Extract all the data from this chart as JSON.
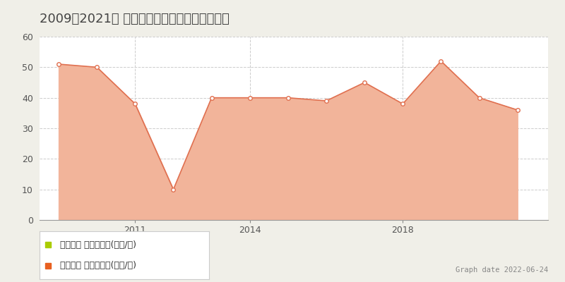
{
  "title": "2009～2021年 大阪市西成区千本中の地価攺移",
  "trade_years": [
    2009,
    2010,
    2011,
    2012,
    2013,
    2014,
    2015,
    2016,
    2017,
    2018,
    2019,
    2020,
    2021
  ],
  "trade_values": [
    51,
    50,
    38,
    10,
    40,
    40,
    40,
    39,
    45,
    38,
    52,
    40,
    36
  ],
  "trade_line_color": "#E07050",
  "trade_fill_color": "#F2B49A",
  "trade_marker_face": "white",
  "trade_marker_edge": "#E07050",
  "legend_label1": "地価公示 平均坪単価(万円/坪)",
  "legend_label2": "取引価格 平均坪単価(万円/坪)",
  "legend_color1": "#AACC00",
  "legend_color2": "#E86020",
  "graph_date": "Graph date 2022-06-24",
  "ylim": [
    0,
    60
  ],
  "yticks": [
    0,
    10,
    20,
    30,
    40,
    50,
    60
  ],
  "xtick_positions": [
    2011,
    2014,
    2018
  ],
  "xtick_labels": [
    "2011",
    "2014",
    "2018"
  ],
  "bg_color": "#F0EFE8",
  "plot_bg_color": "#FFFFFF",
  "grid_color": "#CCCCCC",
  "title_fontsize": 13,
  "axis_fontsize": 9,
  "legend_fontsize": 9
}
